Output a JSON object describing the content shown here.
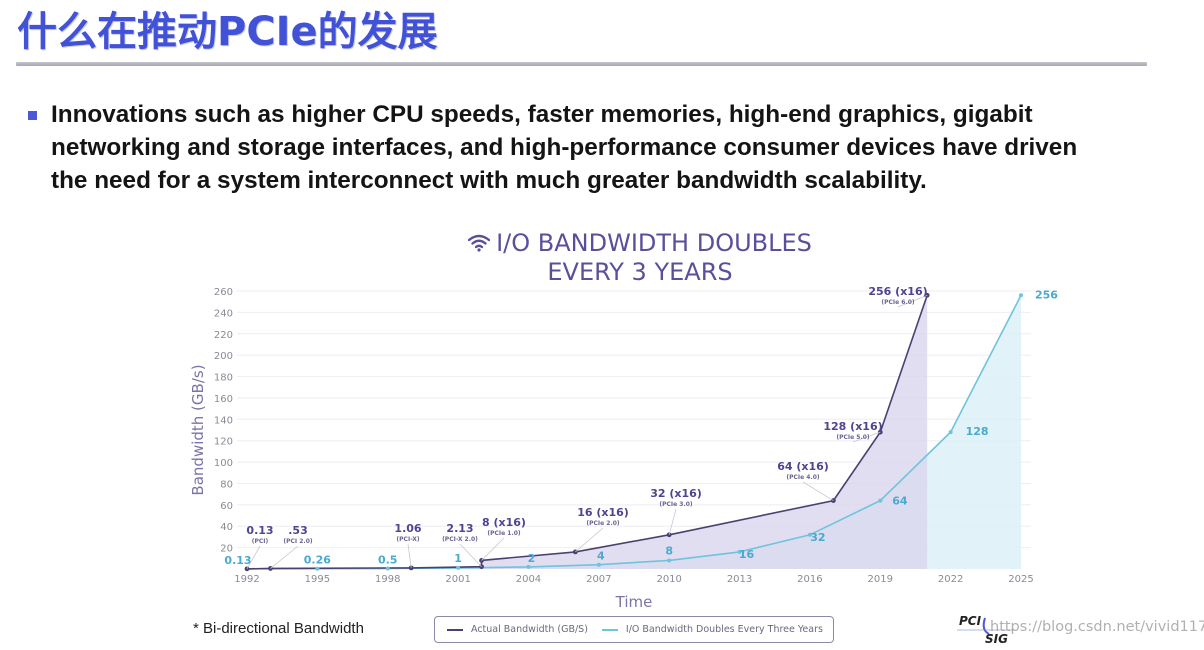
{
  "slide": {
    "title": "什么在推动PCIe的发展",
    "bullet_lines": [
      "Innovations such as higher CPU speeds, faster memories, high-end graphics, gigabit",
      "networking and storage interfaces, and high-performance consumer devices have driven",
      "the need for a system interconnect with much greater bandwidth scalability."
    ],
    "footnote": "* Bi-directional Bandwidth",
    "logo": {
      "top": "PCI",
      "bottom": "SIG"
    },
    "watermark": "https://blog.csdn.net/vivid117"
  },
  "colors": {
    "title_blue": "#4152d8",
    "actual_line": "#4a4170",
    "actual_fill": "#d9d6ee",
    "doubling_line": "#6fc3dc",
    "doubling_fill": "#dcf0f8",
    "actual_label": "#4f4490",
    "doubling_label": "#4aa9cf"
  },
  "chart_data": {
    "type": "line",
    "title": "I/O BANDWIDTH DOUBLES EVERY 3 YEARS",
    "title_lines": [
      "I/O BANDWIDTH DOUBLES",
      "EVERY 3 YEARS"
    ],
    "xlabel": "Time",
    "ylabel": "Bandwidth (GB/s)",
    "ylim": [
      0,
      260
    ],
    "xlim": [
      1992,
      2025
    ],
    "yticks": [
      20,
      40,
      60,
      80,
      100,
      120,
      140,
      160,
      180,
      200,
      220,
      240,
      260
    ],
    "xticks": [
      "1992",
      "1995",
      "1998",
      "2001",
      "2004",
      "2007",
      "2010",
      "2013",
      "2016",
      "2019",
      "2022",
      "2025"
    ],
    "grid": true,
    "legend_position": "bottom",
    "legend": [
      "Actual Bandwidth (GB/S)",
      "I/O Bandwidth Doubles Every Three Years"
    ],
    "series": [
      {
        "name": "Actual Bandwidth (GB/S)",
        "points": [
          {
            "x": 1992,
            "y": 0.13,
            "label": "0.13",
            "sub": "(PCI)"
          },
          {
            "x": 1993,
            "y": 0.53,
            "label": ".53",
            "sub": "(PCI 2.0)"
          },
          {
            "x": 1999,
            "y": 1.06,
            "label": "1.06",
            "sub": "(PCI-X)"
          },
          {
            "x": 2002,
            "y": 2.13,
            "label": "2.13",
            "sub": "(PCI-X 2.0)"
          },
          {
            "x": 2002,
            "y": 8,
            "label": "8 (x16)",
            "sub": "(PCIe 1.0)"
          },
          {
            "x": 2006,
            "y": 16,
            "label": "16 (x16)",
            "sub": "(PCIe 2.0)"
          },
          {
            "x": 2010,
            "y": 32,
            "label": "32 (x16)",
            "sub": "(PCIe 3.0)"
          },
          {
            "x": 2017,
            "y": 64,
            "label": "64 (x16)",
            "sub": "(PCIe 4.0)"
          },
          {
            "x": 2019,
            "y": 128,
            "label": "128 (x16)",
            "sub": "(PCIe 5.0)"
          },
          {
            "x": 2021,
            "y": 256,
            "label": "256 (x16)",
            "sub": "(PCIe 6.0)"
          }
        ]
      },
      {
        "name": "I/O Bandwidth Doubles Every Three Years",
        "points": [
          {
            "x": 1992,
            "y": 0.13,
            "label": "0.13"
          },
          {
            "x": 1995,
            "y": 0.26,
            "label": "0.26"
          },
          {
            "x": 1998,
            "y": 0.5,
            "label": "0.5"
          },
          {
            "x": 2001,
            "y": 1,
            "label": "1"
          },
          {
            "x": 2004,
            "y": 2,
            "label": "2"
          },
          {
            "x": 2007,
            "y": 4,
            "label": "4"
          },
          {
            "x": 2010,
            "y": 8,
            "label": "8"
          },
          {
            "x": 2013,
            "y": 16,
            "label": "16"
          },
          {
            "x": 2016,
            "y": 32,
            "label": "32"
          },
          {
            "x": 2019,
            "y": 64,
            "label": "64"
          },
          {
            "x": 2022,
            "y": 128,
            "label": "128"
          },
          {
            "x": 2025,
            "y": 256,
            "label": "256"
          }
        ]
      }
    ]
  }
}
